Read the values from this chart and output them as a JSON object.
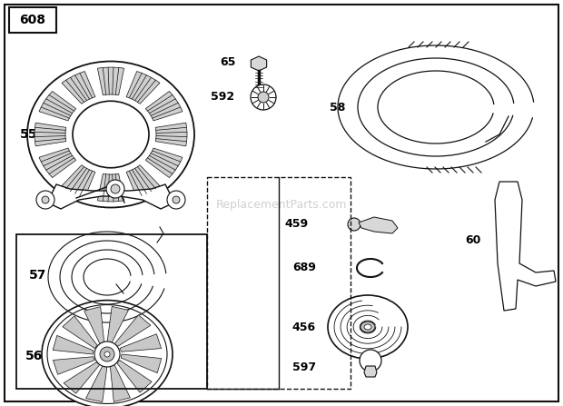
{
  "bg": "#ffffff",
  "lc": "#111111",
  "title": "608",
  "watermark": "ReplacementParts.com",
  "figsize": [
    6.2,
    4.47
  ],
  "dpi": 100
}
